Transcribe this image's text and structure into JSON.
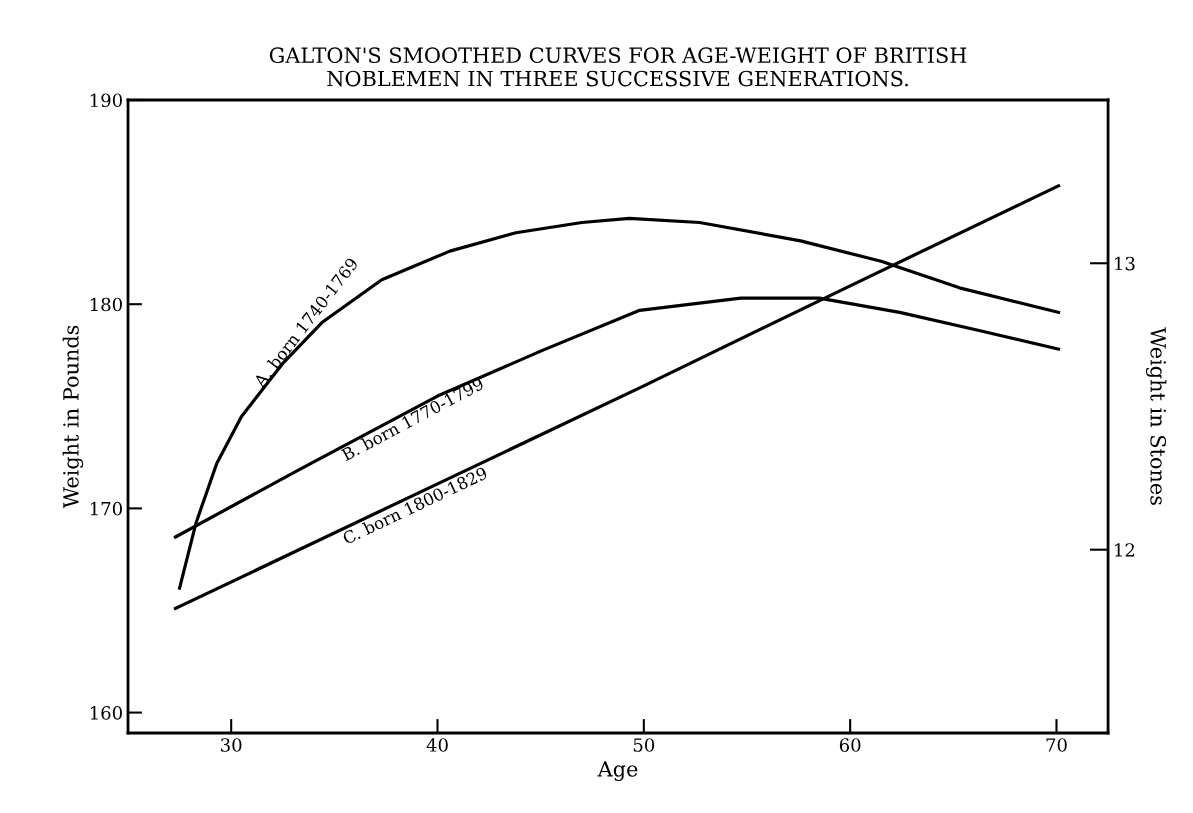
{
  "chart_data": {
    "type": "line",
    "title": "GALTON'S SMOOTHED CURVES FOR AGE-WEIGHT OF BRITISH\nNOBLEMEN IN THREE SUCCESSIVE GENERATIONS.",
    "xlabel": "Age",
    "ylabel": "Weight in Pounds",
    "y2label": "Weight in Stones",
    "xlim": [
      25,
      72.5
    ],
    "xticks": [
      30,
      40,
      50,
      60,
      70
    ],
    "ylim": [
      159,
      190
    ],
    "yticks": [
      160,
      170,
      180,
      190
    ],
    "y2lim": [
      11.36,
      13.57
    ],
    "y2ticks": [
      12,
      13
    ],
    "grid": false,
    "legend": false,
    "marker": "none",
    "line_style": "solid",
    "series": [
      {
        "name": "A. born 1740-1769",
        "color": "#000000",
        "x": [
          27.5,
          28.3,
          29.3,
          30.5,
          32.5,
          34.4,
          37.3,
          40.6,
          43.8,
          47,
          49.3,
          52.7,
          57.6,
          61.5,
          65.3,
          70.1
        ],
        "values": [
          166.1,
          169.3,
          172.2,
          174.5,
          177.1,
          179.1,
          181.2,
          182.6,
          183.5,
          184.0,
          184.2,
          184.0,
          183.1,
          182.1,
          180.8,
          179.6
        ]
      },
      {
        "name": "B. born 1770-1799",
        "color": "#000000",
        "x": [
          27.3,
          33.3,
          40,
          45,
          49.8,
          54.7,
          58.5,
          62.4,
          66.3,
          70.1
        ],
        "values": [
          168.6,
          171.9,
          175.5,
          177.7,
          179.7,
          180.3,
          180.3,
          179.6,
          178.7,
          177.8
        ]
      },
      {
        "name": "C. born 1800-1829",
        "color": "#000000",
        "x": [
          27.3,
          40,
          50,
          60,
          70.1
        ],
        "values": [
          165.1,
          171.2,
          176.0,
          180.9,
          185.8
        ]
      }
    ]
  }
}
